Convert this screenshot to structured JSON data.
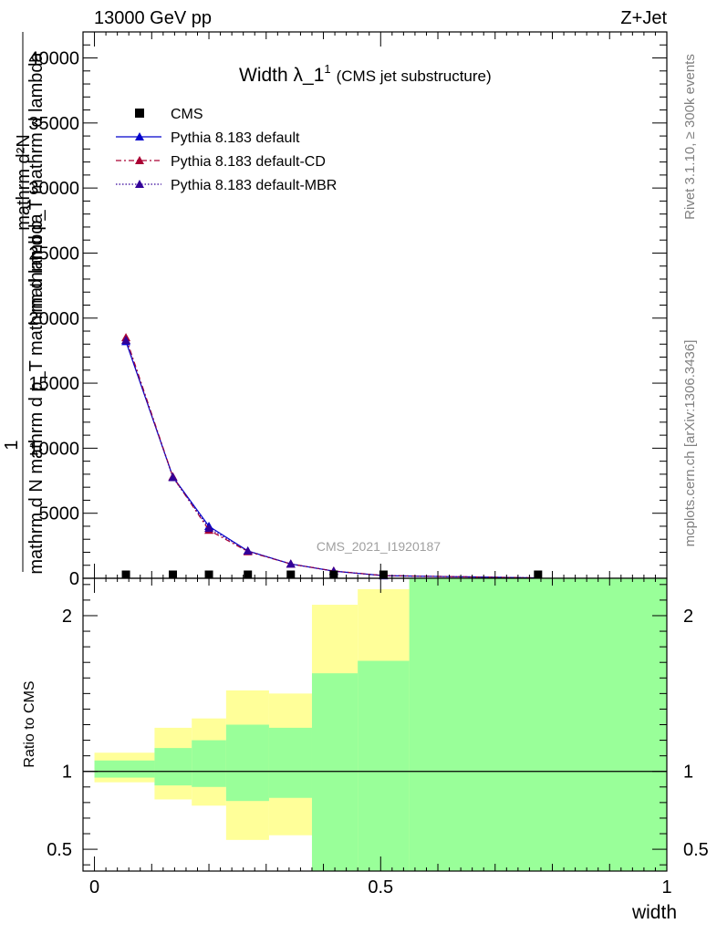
{
  "header": {
    "energy_label": "13000 GeV pp",
    "process_label": "Z+Jet"
  },
  "side_labels": {
    "rivet": "Rivet 3.1.10, ≥ 300k events",
    "mcplots": "mcplots.cern.ch [arXiv:1306.3436]"
  },
  "watermark": "CMS_2021_I1920187",
  "chart_data": [
    {
      "panel": "main",
      "type": "line",
      "title": "Width λ_1",
      "title_superscript": "1",
      "subtitle": "(CMS jet substructure)",
      "ylabel_lines": [
        "mathrm d²N",
        "mathrm d p_T mathrm d lambda",
        "mathrm d N mathrm d p_T mathrm d lambda",
        "1"
      ],
      "xlabel": "width",
      "xlim": [
        -0.02,
        1.0
      ],
      "ylim": [
        0,
        42000
      ],
      "yticks": [
        0,
        5000,
        10000,
        15000,
        20000,
        25000,
        30000,
        35000,
        40000
      ],
      "ytick_labels": [
        "0",
        "5000",
        "10000",
        "15000",
        "20000",
        "25000",
        "30000",
        "35000",
        "40000"
      ],
      "legend": [
        "CMS",
        "Pythia 8.183 default",
        "Pythia 8.183 default-CD",
        "Pythia 8.183 default-MBR"
      ],
      "series": [
        {
          "name": "CMS",
          "style": "square",
          "color": "#000000",
          "x": [
            0.055,
            0.137,
            0.2,
            0.268,
            0.343,
            0.418,
            0.505,
            0.775
          ],
          "y": [
            40,
            40,
            40,
            40,
            40,
            40,
            40,
            40
          ]
        },
        {
          "name": "Pythia 8.183 default",
          "style": "solid",
          "color": "#0000cc",
          "x": [
            0.055,
            0.137,
            0.2,
            0.268,
            0.343,
            0.418,
            0.505,
            0.775
          ],
          "y": [
            18200,
            7800,
            4000,
            2100,
            1100,
            550,
            200,
            30
          ]
        },
        {
          "name": "Pythia 8.183 default-CD",
          "style": "dashdot",
          "color": "#aa0033",
          "x": [
            0.055,
            0.137,
            0.2,
            0.268,
            0.343,
            0.418,
            0.505,
            0.775
          ],
          "y": [
            18500,
            7800,
            3700,
            2050,
            1100,
            560,
            210,
            30
          ]
        },
        {
          "name": "Pythia 8.183 default-MBR",
          "style": "dotted",
          "color": "#330099",
          "x": [
            0.055,
            0.137,
            0.2,
            0.268,
            0.343,
            0.418,
            0.505,
            0.775
          ],
          "y": [
            18300,
            7750,
            3850,
            2100,
            1100,
            550,
            200,
            30
          ]
        }
      ]
    },
    {
      "panel": "ratio",
      "type": "area",
      "ylabel": "Ratio to CMS",
      "ylim": [
        0.36,
        2.24
      ],
      "yticks": [
        0.5,
        1,
        2
      ],
      "ytick_labels": [
        "0.5",
        "1",
        "2"
      ],
      "xticks": [
        0,
        0.5,
        1
      ],
      "xtick_labels": [
        "0",
        "0.5",
        "1"
      ],
      "reference_line": 1.0,
      "bin_edges": [
        0.0,
        0.105,
        0.17,
        0.23,
        0.305,
        0.38,
        0.46,
        0.55,
        1.0
      ],
      "bands": [
        {
          "name": "stat+syst",
          "color": "#ffff99",
          "low": [
            0.93,
            0.82,
            0.78,
            0.56,
            0.59,
            0.43,
            0.0,
            0.0
          ],
          "high": [
            1.12,
            1.28,
            1.34,
            1.52,
            1.5,
            2.07,
            2.17,
            2.24
          ]
        },
        {
          "name": "stat",
          "color": "#99ff99",
          "low": [
            0.96,
            0.91,
            0.9,
            0.81,
            0.83,
            0.0,
            0.0,
            0.0
          ],
          "high": [
            1.07,
            1.15,
            1.2,
            1.3,
            1.28,
            1.63,
            1.71,
            2.24
          ]
        }
      ]
    }
  ]
}
